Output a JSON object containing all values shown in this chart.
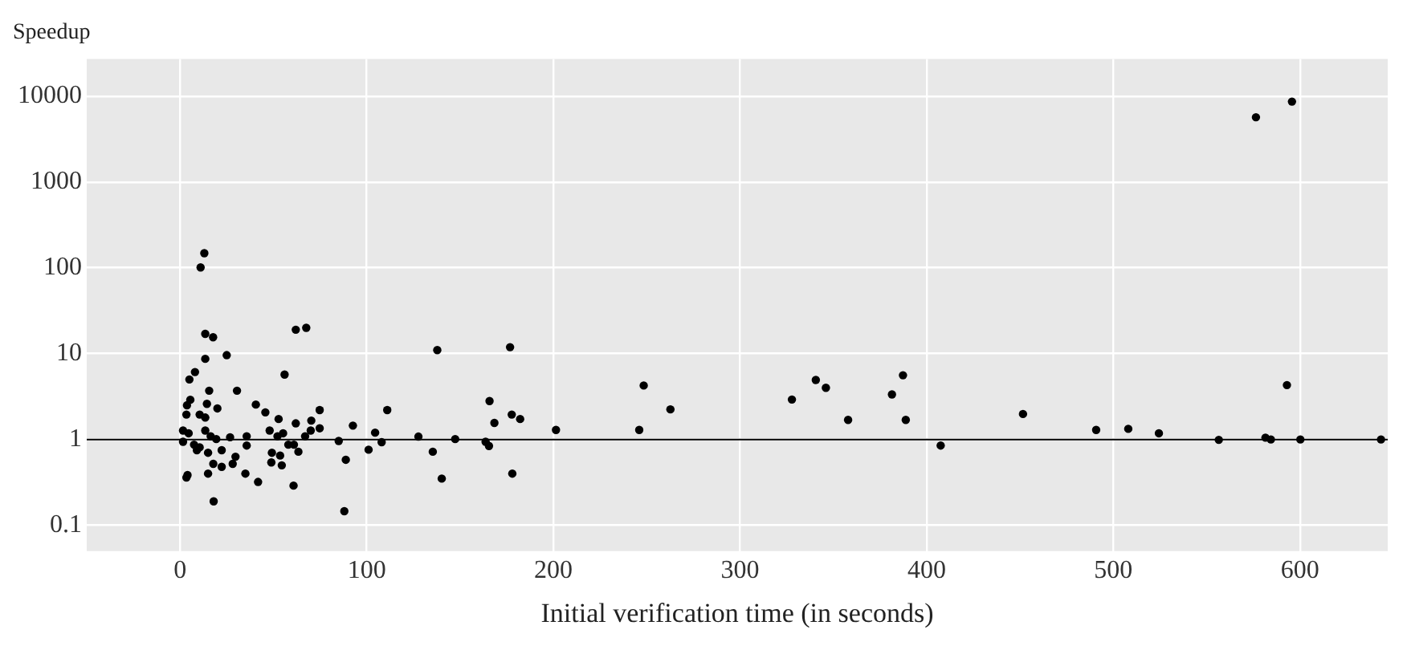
{
  "chart_data": {
    "type": "scatter",
    "title": "Speedup",
    "xlabel": "Initial verification time (in seconds)",
    "log": "y",
    "grid": true,
    "marker": "circle",
    "legend": false,
    "xlim": [
      -50,
      647
    ],
    "xticks": [
      0,
      100,
      200,
      300,
      400,
      500,
      600
    ],
    "ylim": [
      0.05,
      27000
    ],
    "yticks": [
      0.1,
      1,
      10,
      100,
      1000,
      10000
    ],
    "ref_lines": [
      {
        "axis": "y",
        "value": 1,
        "color": "#000000"
      }
    ],
    "series": [
      {
        "color": "#000000",
        "x": [
          13,
          11,
          13.5,
          17.7,
          62,
          67.6,
          13.5,
          25,
          8,
          5,
          56,
          15.6,
          30.5,
          5.5,
          3.7,
          14.4,
          20,
          3.4,
          10.5,
          13.5,
          40.6,
          45.7,
          52.8,
          62,
          74.8,
          70.3,
          74.8,
          111,
          92.6,
          104.5,
          108,
          101,
          85,
          88.8,
          88,
          1.6,
          4.6,
          1.6,
          7.5,
          10.5,
          13.5,
          16.4,
          19.4,
          15,
          9,
          22.3,
          26.8,
          35.7,
          35.7,
          29.7,
          28.2,
          17.8,
          22.3,
          15,
          35,
          41.8,
          4,
          3.4,
          18,
          48,
          52.2,
          55.2,
          49.2,
          53.6,
          58,
          61,
          63.4,
          48.9,
          54.5,
          60.8,
          67,
          70,
          127.7,
          135.4,
          137.8,
          140.2,
          147.4,
          163.7,
          165.5,
          165.8,
          168.4,
          176.8,
          177.7,
          182.2,
          178,
          201.4,
          246,
          248.4,
          262.7,
          327.8,
          340.6,
          346,
          357.9,
          381.4,
          387.3,
          388.8,
          407.5,
          451.6,
          490.8,
          508,
          524.4,
          556.5,
          581.5,
          584.4,
          593,
          600.2,
          643.4,
          576.4,
          595.7
        ],
        "values": [
          148,
          101,
          17,
          15.5,
          19,
          20,
          8.7,
          9.6,
          6.1,
          5,
          5.7,
          3.7,
          3.7,
          2.9,
          2.5,
          2.6,
          2.3,
          1.95,
          1.95,
          1.8,
          2.55,
          2.07,
          1.73,
          1.54,
          2.2,
          1.66,
          1.35,
          2.2,
          1.45,
          1.2,
          0.93,
          0.76,
          0.96,
          0.58,
          0.146,
          1.27,
          1.18,
          0.94,
          0.87,
          0.81,
          1.27,
          1.09,
          1.01,
          0.7,
          0.75,
          0.75,
          1.06,
          1.09,
          0.85,
          0.63,
          0.52,
          0.52,
          0.48,
          0.4,
          0.4,
          0.32,
          0.385,
          0.36,
          0.19,
          1.27,
          1.09,
          1.18,
          0.7,
          0.65,
          0.87,
          0.87,
          0.72,
          0.54,
          0.5,
          0.29,
          1.09,
          1.27,
          1.08,
          0.72,
          11,
          0.35,
          1.01,
          0.94,
          0.84,
          2.8,
          1.56,
          11.9,
          1.95,
          1.73,
          0.4,
          1.29,
          1.29,
          4.25,
          2.24,
          2.92,
          4.93,
          4,
          1.69,
          3.35,
          5.6,
          1.69,
          0.85,
          1.98,
          1.29,
          1.33,
          1.18,
          0.99,
          1.05,
          1,
          4.3,
          1,
          1,
          5670,
          8630
        ]
      }
    ]
  }
}
